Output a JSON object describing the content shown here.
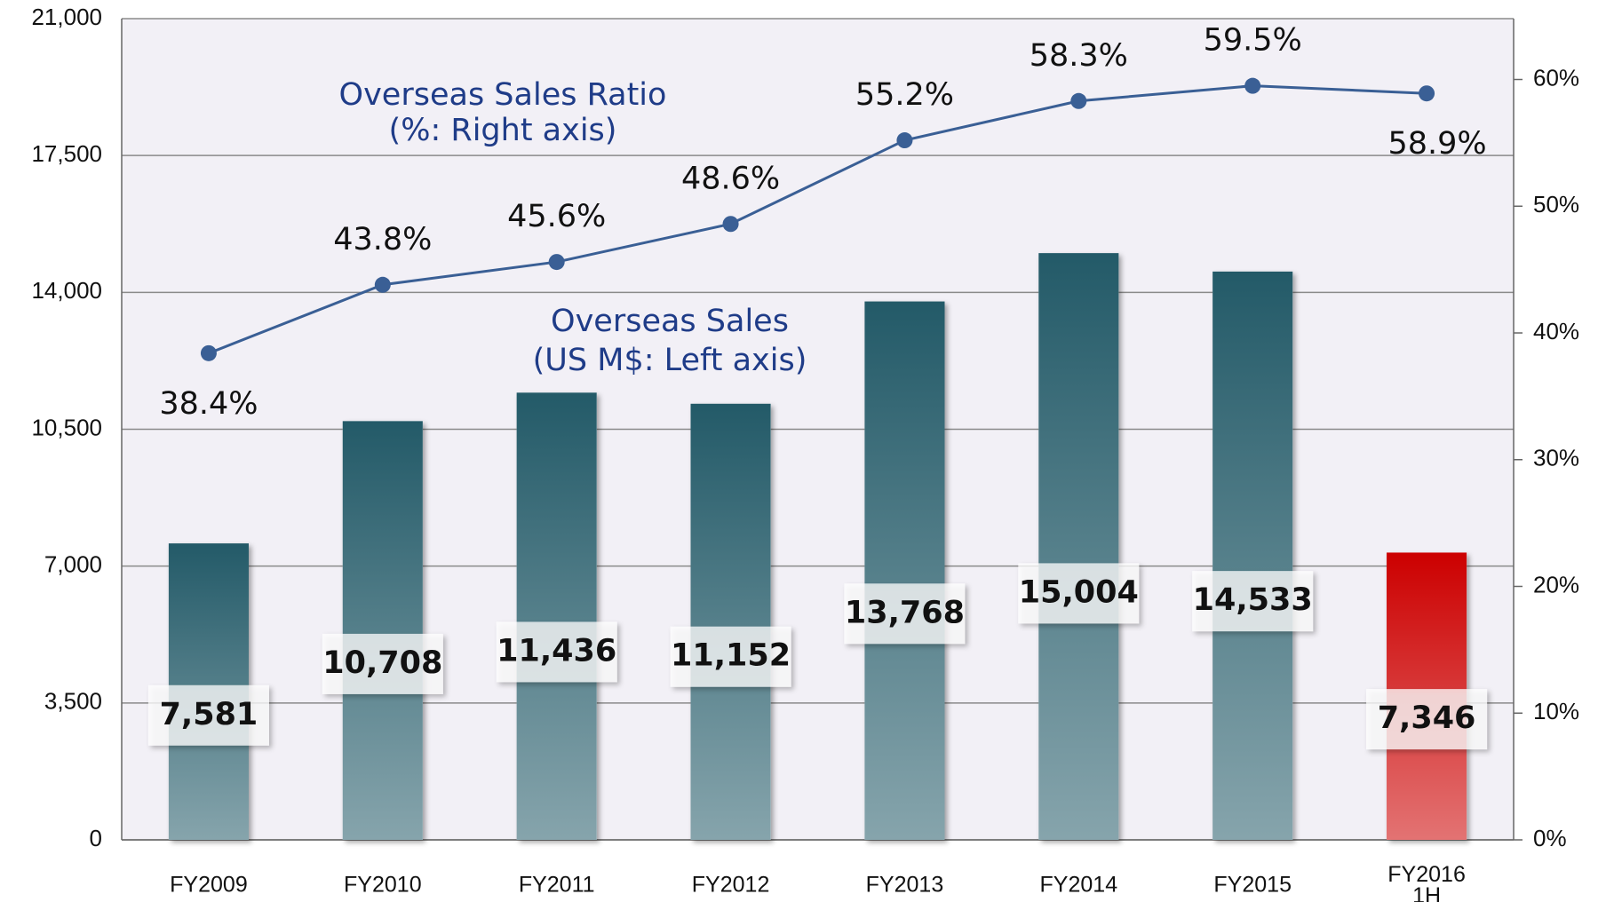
{
  "chart_data": {
    "type": "bar-line",
    "categories": [
      "FY2009",
      "FY2010",
      "FY2011",
      "FY2012",
      "FY2013",
      "FY2014",
      "FY2015",
      "FY2016\n1H"
    ],
    "series": [
      {
        "name": "Overseas Sales",
        "type": "bar",
        "colors": [
          "#235a68",
          "#235a68",
          "#235a68",
          "#235a68",
          "#235a68",
          "#235a68",
          "#235a68",
          "#cc0000"
        ],
        "values": [
          7581,
          10708,
          11436,
          11152,
          13768,
          15004,
          14533,
          7346
        ],
        "value_labels": [
          "7,581",
          "10,708",
          "11,436",
          "11,152",
          "13,768",
          "15,004",
          "14,533",
          "7,346"
        ]
      },
      {
        "name": "Overseas Sales Ratio",
        "type": "line",
        "axis": "y2",
        "color": "#3a5f95",
        "values": [
          38.4,
          43.8,
          45.6,
          48.6,
          55.2,
          58.3,
          59.5,
          58.9
        ],
        "value_labels": [
          "38.4%",
          "43.8%",
          "45.6%",
          "48.6%",
          "55.2%",
          "58.3%",
          "59.5%",
          "58.9%"
        ]
      }
    ],
    "annotations": [
      "Overseas Sales Ratio",
      "(%: Right axis)",
      "Overseas Sales",
      "(US M$: Left axis)"
    ],
    "ylim": [
      0,
      21000
    ],
    "yticks": [
      0,
      {
        "value": 3500,
        "label": "3,500"
      },
      {
        "value": 7000,
        "label": "7,000"
      },
      {
        "value": 10500,
        "label": "10,500"
      },
      {
        "value": 14000,
        "label": "14,000"
      },
      {
        "value": 17500,
        "label": "17,500"
      },
      {
        "value": 21000,
        "label": "21,000"
      }
    ],
    "y2lim": [
      0,
      64.8
    ],
    "y2ticks": [
      {
        "value": 0,
        "label": "0%"
      },
      {
        "value": 10,
        "label": "10%"
      },
      {
        "value": 20,
        "label": "20%"
      },
      {
        "value": 30,
        "label": "30%"
      },
      {
        "value": 40,
        "label": "40%"
      },
      {
        "value": 50,
        "label": "50%"
      },
      {
        "value": 60,
        "label": "60%"
      }
    ],
    "grid": true
  }
}
